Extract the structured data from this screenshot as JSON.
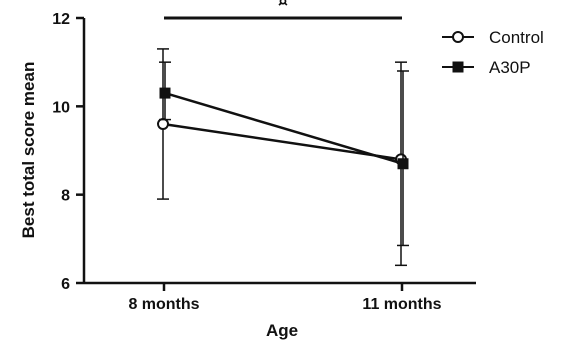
{
  "chart_data": {
    "type": "line",
    "xlabel": "Age",
    "ylabel": "Best total score mean",
    "categories": [
      "8 months",
      "11 months"
    ],
    "ylim": [
      6,
      12
    ],
    "yticks": [
      6,
      8,
      10,
      12
    ],
    "grid": false,
    "legend_position": "top-right",
    "series": [
      {
        "name": "Control",
        "marker": "open-circle",
        "color": "#111111",
        "values": [
          9.6,
          8.8
        ],
        "error_low": [
          7.9,
          6.4
        ],
        "error_high": [
          11.3,
          11.0
        ]
      },
      {
        "name": "A30P",
        "marker": "filled-square",
        "color": "#111111",
        "values": [
          10.3,
          8.7
        ],
        "error_low": [
          9.7,
          6.85
        ],
        "error_high": [
          11.0,
          10.8
        ]
      }
    ],
    "annotation": {
      "symbol": "¤",
      "from": "8 months",
      "to": "11 months"
    }
  }
}
